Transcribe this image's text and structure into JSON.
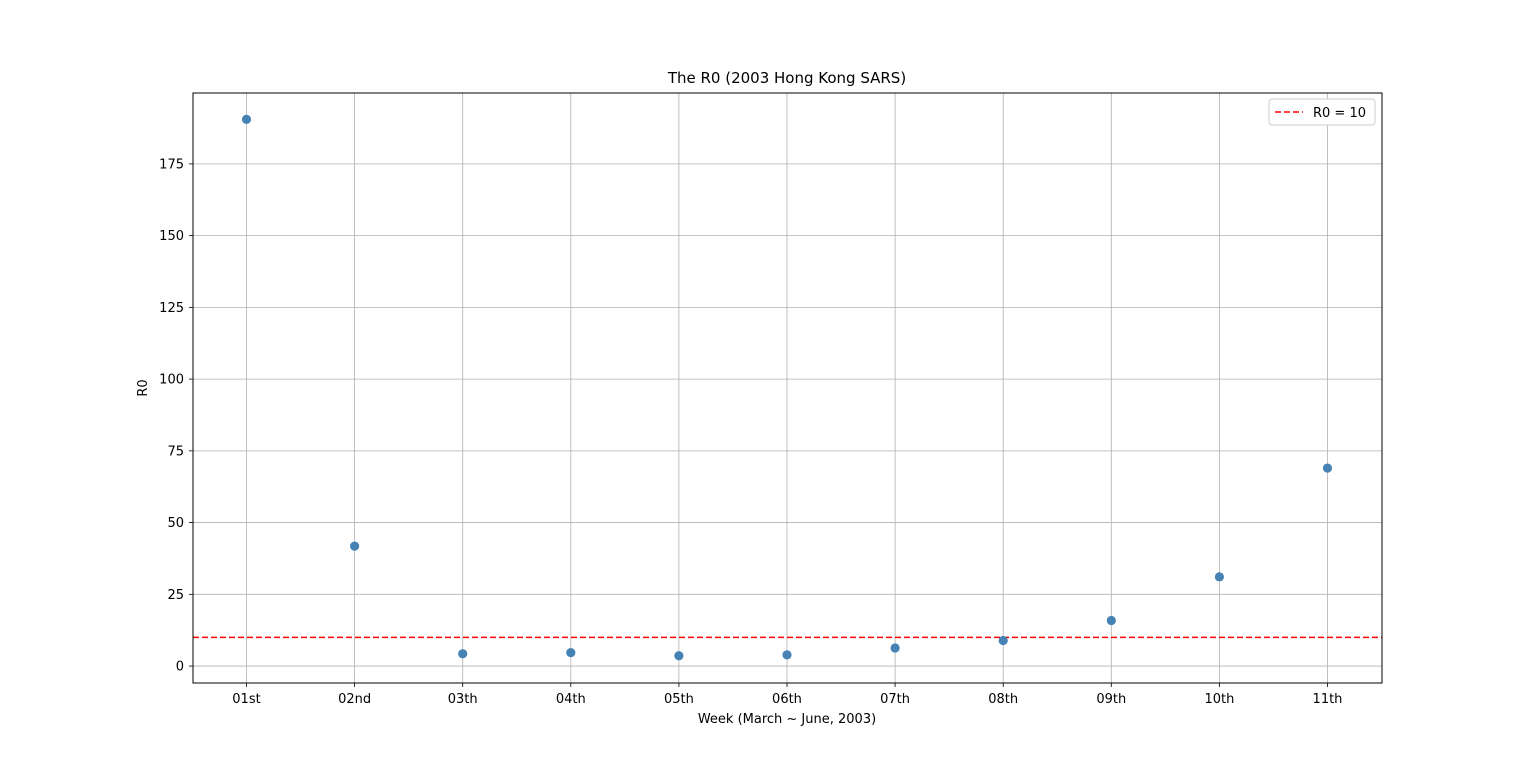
{
  "chart_data": {
    "type": "scatter",
    "title": "The R0 (2003 Hong Kong SARS)",
    "xlabel": "Week (March ~ June, 2003)",
    "ylabel": "R0",
    "categories": [
      "01st",
      "02nd",
      "03th",
      "04th",
      "05th",
      "06th",
      "07th",
      "08th",
      "09th",
      "10th",
      "11th"
    ],
    "series": [
      {
        "values": [
          190.5,
          41.8,
          4.3,
          4.7,
          3.6,
          3.9,
          6.3,
          8.9,
          15.9,
          31.1,
          69.0
        ],
        "color": "#4682b4"
      }
    ],
    "reference_line": {
      "label": "R0 = 10",
      "value": 10,
      "color": "#ff0000",
      "style": "dashed"
    },
    "yticks": [
      0,
      25,
      50,
      75,
      100,
      125,
      150,
      175
    ],
    "ylim": [
      -5.9,
      199.7
    ],
    "grid": true,
    "legend_position": "top-right"
  }
}
